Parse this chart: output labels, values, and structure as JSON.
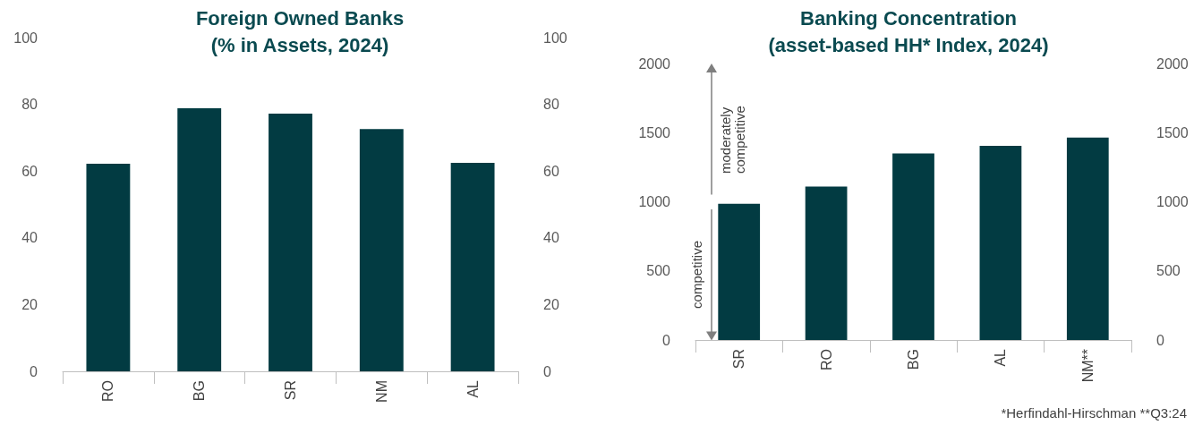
{
  "chart_data": [
    {
      "type": "bar",
      "title": "Foreign Owned Banks\n(% in Assets, 2024)",
      "categories": [
        "RO",
        "BG",
        "SR",
        "NM",
        "AL"
      ],
      "values": [
        62.2,
        78.8,
        77.2,
        72.6,
        62.5
      ],
      "color": "#023b42",
      "ylim": [
        0,
        100
      ],
      "yticks": [
        0,
        20,
        40,
        60,
        80,
        100
      ],
      "y2lim": [
        0,
        100
      ],
      "y2ticks": [
        0,
        20,
        40,
        60,
        80,
        100
      ],
      "grid": false
    },
    {
      "type": "bar",
      "title": "Banking Concentration\n(asset-based HH* Index, 2024)",
      "categories": [
        "SR",
        "RO",
        "BG",
        "AL",
        "NM**"
      ],
      "values": [
        985,
        1110,
        1350,
        1405,
        1465
      ],
      "color": "#023b42",
      "ylim": [
        0,
        2000
      ],
      "yticks": [
        0,
        500,
        1000,
        1500,
        2000
      ],
      "y2lim": [
        0,
        2000
      ],
      "y2ticks": [
        0,
        500,
        1000,
        1500,
        2000
      ],
      "grid": false,
      "annotations": [
        "moderately competitive",
        "competitive",
        "*Herfindahl-Hirschman **Q3:24"
      ]
    }
  ]
}
